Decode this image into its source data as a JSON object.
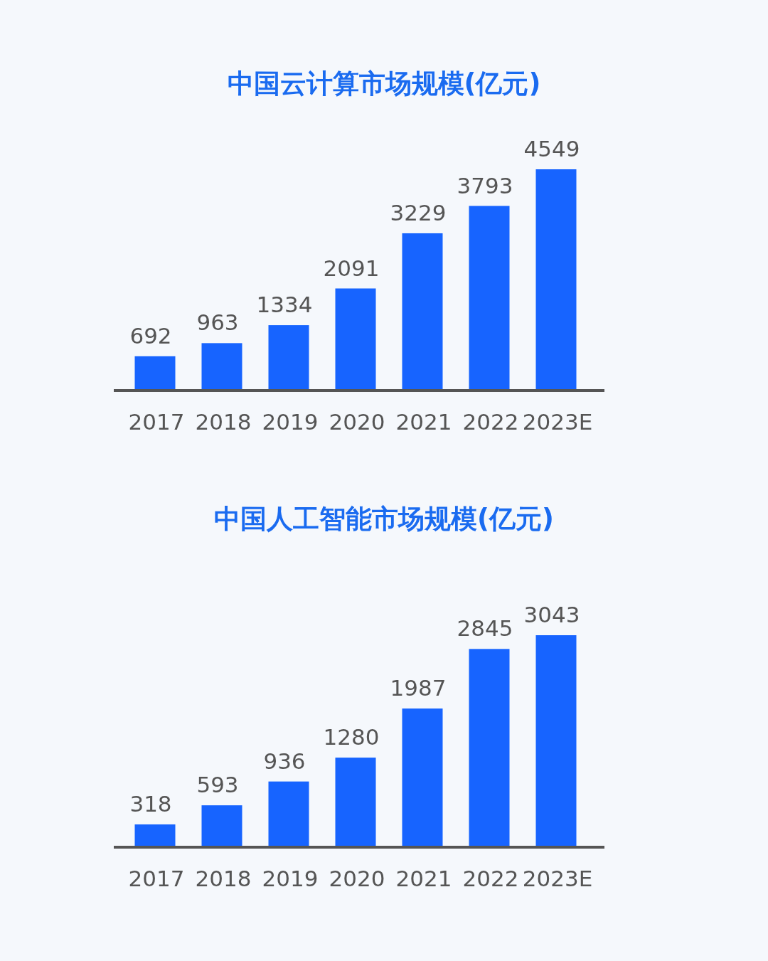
{
  "chart_data": [
    {
      "type": "bar",
      "title": "中国云计算市场规模(亿元)",
      "categories": [
        "2017",
        "2018",
        "2019",
        "2020",
        "2021",
        "2022",
        "2023E"
      ],
      "values": [
        692,
        963,
        1334,
        2091,
        3229,
        3793,
        4549
      ],
      "color": "#1764ff",
      "data_labels": true
    },
    {
      "type": "bar",
      "title": "中国人工智能市场规模(亿元)",
      "categories": [
        "2017",
        "2018",
        "2019",
        "2020",
        "2021",
        "2022",
        "2023E"
      ],
      "values": [
        318,
        593,
        936,
        1280,
        1987,
        2845,
        3043
      ],
      "color": "#1764ff",
      "data_labels": true
    }
  ]
}
